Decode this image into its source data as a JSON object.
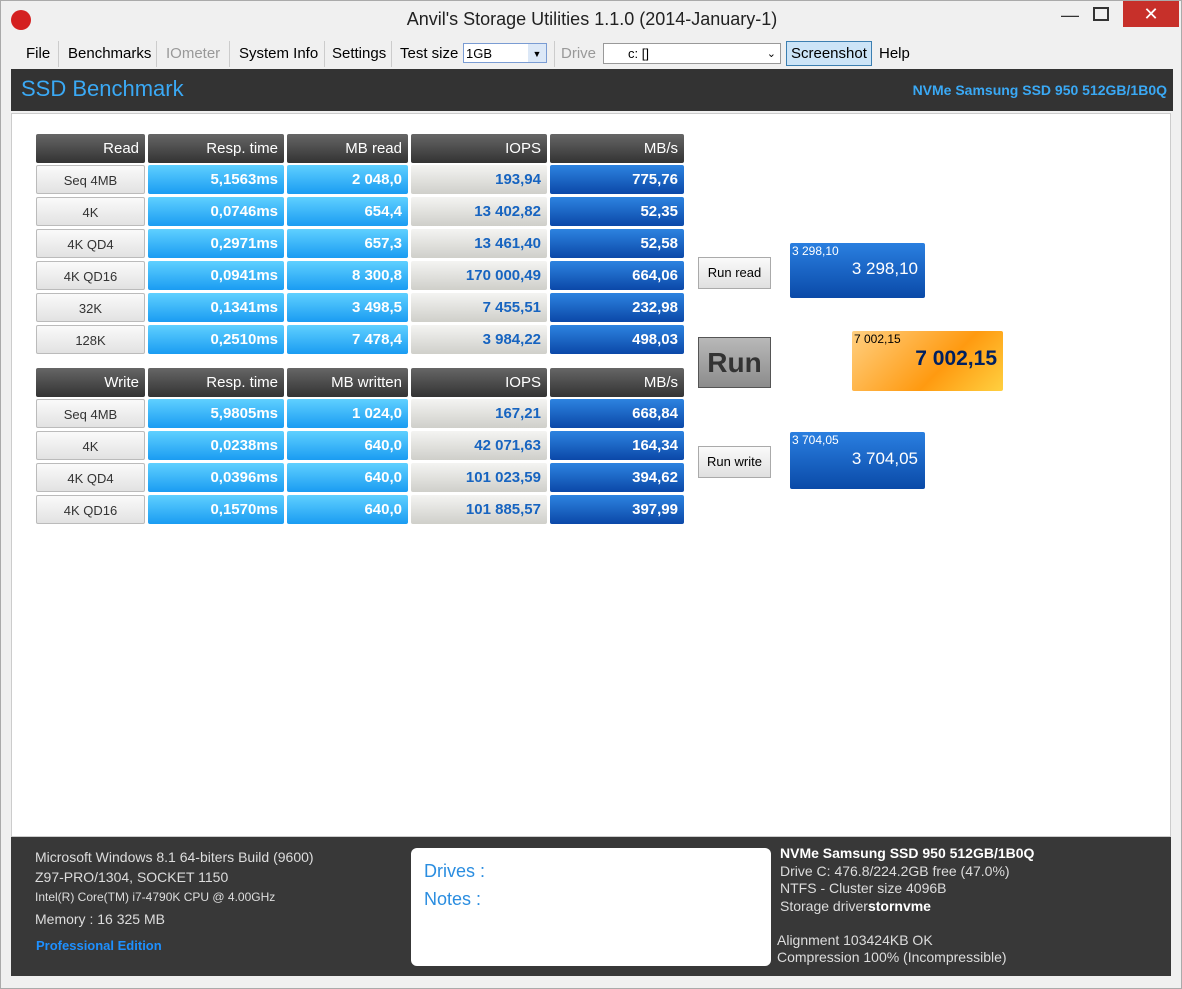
{
  "window": {
    "title": "Anvil's Storage Utilities 1.1.0 (2014-January-1)"
  },
  "menu": {
    "items": [
      "File",
      "Benchmarks",
      "IOmeter",
      "System Info",
      "Settings"
    ],
    "test_size_label": "Test size",
    "test_size": "1GB",
    "drive_label": "Drive",
    "drive": "c: []",
    "screenshot": "Screenshot",
    "help": "Help"
  },
  "header": {
    "title": "SSD Benchmark",
    "device": "NVMe Samsung SSD 950 512GB/1B0Q"
  },
  "read_table": {
    "columns": [
      "Read",
      "Resp. time",
      "MB read",
      "IOPS",
      "MB/s"
    ],
    "rows": [
      [
        "Seq 4MB",
        "5,1563ms",
        "2 048,0",
        "193,94",
        "775,76"
      ],
      [
        "4K",
        "0,0746ms",
        "654,4",
        "13 402,82",
        "52,35"
      ],
      [
        "4K QD4",
        "0,2971ms",
        "657,3",
        "13 461,40",
        "52,58"
      ],
      [
        "4K QD16",
        "0,0941ms",
        "8 300,8",
        "170 000,49",
        "664,06"
      ],
      [
        "32K",
        "0,1341ms",
        "3 498,5",
        "7 455,51",
        "232,98"
      ],
      [
        "128K",
        "0,2510ms",
        "7 478,4",
        "3 984,22",
        "498,03"
      ]
    ]
  },
  "write_table": {
    "columns": [
      "Write",
      "Resp. time",
      "MB written",
      "IOPS",
      "MB/s"
    ],
    "rows": [
      [
        "Seq 4MB",
        "5,9805ms",
        "1 024,0",
        "167,21",
        "668,84"
      ],
      [
        "4K",
        "0,0238ms",
        "640,0",
        "42 071,63",
        "164,34"
      ],
      [
        "4K QD4",
        "0,0396ms",
        "640,0",
        "101 023,59",
        "394,62"
      ],
      [
        "4K QD16",
        "0,1570ms",
        "640,0",
        "101 885,57",
        "397,99"
      ]
    ]
  },
  "buttons": {
    "run_read": "Run read",
    "run": "Run",
    "run_write": "Run write"
  },
  "scores": {
    "read": {
      "small": "3 298,10",
      "main": "3 298,10"
    },
    "total": {
      "small": "7 002,15",
      "main": "7 002,15"
    },
    "write": {
      "small": "3 704,05",
      "main": "3 704,05"
    }
  },
  "footer": {
    "system": [
      "Microsoft Windows 8.1 64-biters Build (9600)",
      "Z97-PRO/1304, SOCKET 1150",
      "Intel(R) Core(TM) i7-4790K CPU @ 4.00GHz",
      "Memory : 16 325 MB"
    ],
    "edition": "Professional Edition",
    "drives_label": "Drives :",
    "notes_label": "Notes :",
    "device_title": "NVMe Samsung SSD 950 512GB/1B0Q",
    "device_info": [
      "Drive C: 476.8/224.2GB free (47.0%)",
      "NTFS - Cluster size 4096B"
    ],
    "driver_label": "Storage driver",
    "driver": "stornvme",
    "alignment": "Alignment 103424KB OK",
    "compression": "Compression 100% (Incompressible)"
  }
}
